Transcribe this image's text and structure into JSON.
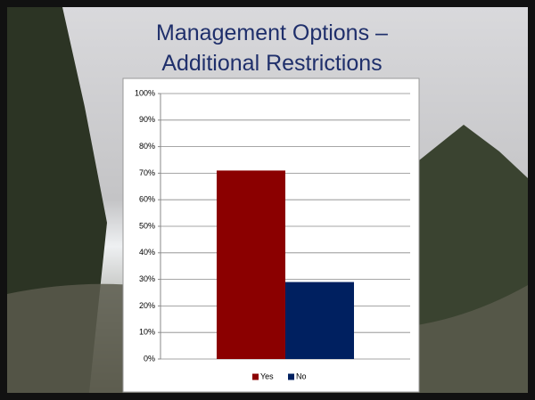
{
  "chart_data": {
    "type": "bar",
    "title": "Management Options – Additional Restrictions",
    "categories": [
      null
    ],
    "series": [
      {
        "name": "Yes",
        "color": "#8b0000",
        "values": [
          71
        ]
      },
      {
        "name": "No",
        "color": "#002060",
        "values": [
          29
        ]
      }
    ],
    "ylim": [
      0,
      100
    ],
    "yticks": [
      {
        "value": 0,
        "label": "0%"
      },
      {
        "value": 10,
        "label": "10%"
      },
      {
        "value": 20,
        "label": "20%"
      },
      {
        "value": 30,
        "label": "30%"
      },
      {
        "value": 40,
        "label": "40%"
      },
      {
        "value": 50,
        "label": "50%"
      },
      {
        "value": 60,
        "label": "60%"
      },
      {
        "value": 70,
        "label": "70%"
      },
      {
        "value": 80,
        "label": "80%"
      },
      {
        "value": 90,
        "label": "90%"
      },
      {
        "value": 100,
        "label": "100%"
      }
    ],
    "grid": true,
    "legend": "bottom"
  }
}
